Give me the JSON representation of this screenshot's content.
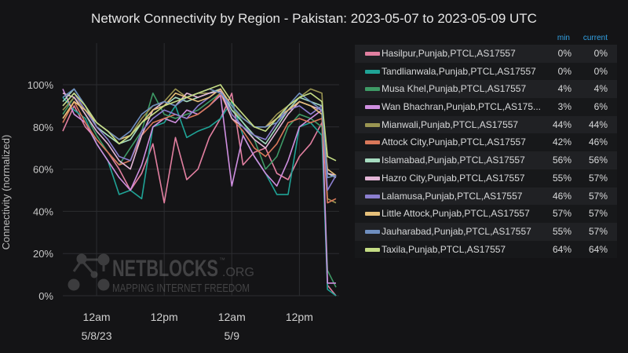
{
  "chart_data": {
    "type": "line",
    "title": "Network Connectivity by Region - Pakistan: 2023-05-07 to 2023-05-09 UTC",
    "ylabel": "Connectivity (normalized)",
    "xlabel": "",
    "ylim": [
      0,
      100
    ],
    "yticks": [
      "0%",
      "20%",
      "40%",
      "60%",
      "80%",
      "100%"
    ],
    "xticks": [
      {
        "label": "12am",
        "sublabel": "5/8/23",
        "at": "2023-05-08 00:00"
      },
      {
        "label": "12pm",
        "sublabel": "",
        "at": "2023-05-08 12:00"
      },
      {
        "label": "12am",
        "sublabel": "5/9",
        "at": "2023-05-09 00:00"
      },
      {
        "label": "12pm",
        "sublabel": "",
        "at": "2023-05-09 12:00"
      }
    ],
    "xrange": [
      "2023-05-07 18:00",
      "2023-05-09 18:30"
    ],
    "grid": true,
    "legend_placement": "right",
    "legend_headers": {
      "min": "min",
      "current": "current"
    },
    "x": [
      "2023-05-07 18:00",
      "2023-05-07 20:00",
      "2023-05-07 22:00",
      "2023-05-08 00:00",
      "2023-05-08 02:00",
      "2023-05-08 04:00",
      "2023-05-08 06:00",
      "2023-05-08 08:00",
      "2023-05-08 10:00",
      "2023-05-08 12:00",
      "2023-05-08 14:00",
      "2023-05-08 16:00",
      "2023-05-08 18:00",
      "2023-05-08 20:00",
      "2023-05-08 22:00",
      "2023-05-09 00:00",
      "2023-05-09 02:00",
      "2023-05-09 04:00",
      "2023-05-09 06:00",
      "2023-05-09 08:00",
      "2023-05-09 10:00",
      "2023-05-09 12:00",
      "2023-05-09 14:00",
      "2023-05-09 16:00",
      "2023-05-09 17:00",
      "2023-05-09 18:30"
    ],
    "series": [
      {
        "name": "Hasilpur,Punjab,PTCL,AS17557",
        "color": "#e17fa0",
        "min": "0%",
        "current": "0%",
        "values": [
          78,
          90,
          80,
          74,
          68,
          60,
          50,
          58,
          72,
          44,
          75,
          55,
          60,
          75,
          84,
          96,
          62,
          68,
          70,
          58,
          55,
          66,
          72,
          82,
          5,
          0
        ]
      },
      {
        "name": "Tandlianwala,Punjab,PTCL,AS17557",
        "color": "#1fa396",
        "min": "0%",
        "current": "0%",
        "values": [
          94,
          88,
          84,
          72,
          64,
          48,
          50,
          46,
          80,
          82,
          90,
          75,
          78,
          80,
          84,
          92,
          76,
          66,
          58,
          48,
          48,
          80,
          82,
          76,
          3,
          0
        ]
      },
      {
        "name": "Musa Khel,Punjab,PTCL,AS17557",
        "color": "#3e9a66",
        "min": "4%",
        "current": "4%",
        "values": [
          86,
          94,
          86,
          76,
          68,
          62,
          70,
          78,
          96,
          86,
          84,
          86,
          88,
          92,
          96,
          90,
          82,
          74,
          60,
          66,
          80,
          86,
          84,
          80,
          12,
          4
        ]
      },
      {
        "name": "Wan Bhachran,Punjab,PTCL,AS175...",
        "color": "#cf8fe0",
        "min": "3%",
        "current": "6%",
        "values": [
          98,
          86,
          82,
          72,
          64,
          56,
          50,
          62,
          80,
          84,
          82,
          88,
          86,
          90,
          95,
          52,
          76,
          66,
          58,
          52,
          64,
          80,
          84,
          88,
          6,
          6
        ]
      },
      {
        "name": "Mianwali,Punjab,PTCL,AS17557",
        "color": "#9a9552",
        "min": "44%",
        "current": "44%",
        "values": [
          88,
          94,
          88,
          80,
          76,
          72,
          76,
          84,
          90,
          92,
          98,
          94,
          96,
          96,
          98,
          88,
          84,
          80,
          80,
          86,
          90,
          94,
          98,
          96,
          46,
          44
        ]
      },
      {
        "name": "Attock City,Punjab,PTCL,AS17557",
        "color": "#d9785a",
        "min": "42%",
        "current": "46%",
        "values": [
          82,
          92,
          82,
          74,
          68,
          62,
          64,
          76,
          82,
          84,
          86,
          84,
          86,
          90,
          96,
          84,
          78,
          70,
          66,
          72,
          82,
          84,
          82,
          84,
          44,
          46
        ]
      },
      {
        "name": "Islamabad,Punjab,PTCL,AS17557",
        "color": "#a6dcc0",
        "min": "56%",
        "current": "56%",
        "values": [
          92,
          98,
          90,
          80,
          76,
          72,
          74,
          82,
          88,
          90,
          94,
          92,
          94,
          96,
          98,
          88,
          82,
          76,
          72,
          80,
          88,
          94,
          92,
          90,
          58,
          56
        ]
      },
      {
        "name": "Hazro City,Punjab,PTCL,AS17557",
        "color": "#e3b6d6",
        "min": "55%",
        "current": "57%",
        "values": [
          96,
          94,
          86,
          78,
          72,
          64,
          60,
          76,
          88,
          92,
          90,
          96,
          94,
          96,
          97,
          84,
          80,
          74,
          70,
          78,
          86,
          92,
          90,
          88,
          58,
          57
        ]
      },
      {
        "name": "Lalamusa,Punjab,PTCL,AS17557",
        "color": "#8c7fd0",
        "min": "46%",
        "current": "57%",
        "values": [
          90,
          96,
          88,
          80,
          74,
          66,
          64,
          78,
          84,
          88,
          86,
          84,
          90,
          94,
          98,
          86,
          80,
          76,
          74,
          82,
          88,
          90,
          86,
          90,
          50,
          57
        ]
      },
      {
        "name": "Little Attock,Punjab,PTCL,AS17557",
        "color": "#e6c07a",
        "min": "57%",
        "current": "57%",
        "values": [
          84,
          92,
          88,
          82,
          78,
          74,
          76,
          82,
          88,
          90,
          96,
          94,
          92,
          94,
          98,
          90,
          84,
          80,
          80,
          84,
          88,
          92,
          90,
          86,
          60,
          57
        ]
      },
      {
        "name": "Jauharabad,Punjab,PTCL,AS17557",
        "color": "#6f8fc0",
        "min": "55%",
        "current": "57%",
        "values": [
          94,
          98,
          90,
          82,
          78,
          74,
          78,
          86,
          90,
          92,
          90,
          94,
          96,
          98,
          96,
          90,
          84,
          80,
          80,
          82,
          90,
          96,
          92,
          88,
          56,
          57
        ]
      },
      {
        "name": "Taxila,Punjab,PTCL,AS17557",
        "color": "#c4dc84",
        "min": "64%",
        "current": "64%",
        "values": [
          90,
          96,
          90,
          82,
          78,
          72,
          76,
          82,
          86,
          90,
          92,
          94,
          96,
          98,
          100,
          92,
          86,
          80,
          78,
          84,
          90,
          94,
          96,
          92,
          66,
          64
        ]
      }
    ]
  },
  "watermark": {
    "brand": "NETBLOCKS",
    "tld": ".ORG",
    "tm": "™",
    "tagline": "MAPPING INTERNET FREEDOM"
  }
}
